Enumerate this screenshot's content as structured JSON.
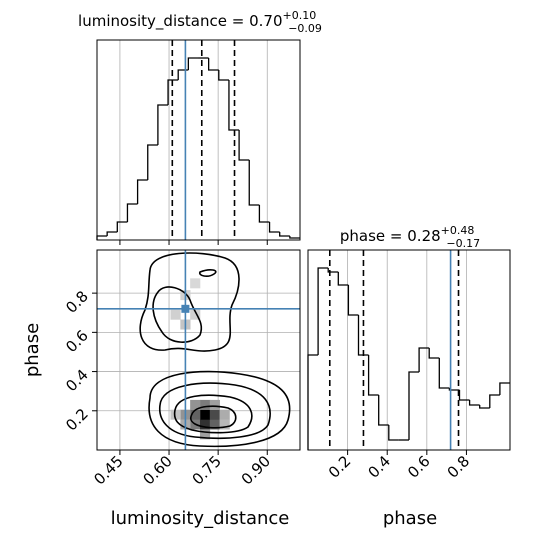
{
  "chart_data": [
    {
      "type": "histogram",
      "title": "luminosity_distance = 0.70",
      "title_upper": "+0.10",
      "title_lower": "−0.09",
      "bins": [
        0.38,
        0.411,
        0.442,
        0.473,
        0.504,
        0.535,
        0.566,
        0.597,
        0.628,
        0.659,
        0.69,
        0.721,
        0.752,
        0.783,
        0.814,
        0.845,
        0.876,
        0.907,
        0.938,
        0.969,
        1.0
      ],
      "values": [
        4,
        8,
        18,
        36,
        60,
        95,
        135,
        160,
        170,
        182,
        182,
        170,
        160,
        110,
        80,
        35,
        18,
        8,
        4,
        2
      ],
      "color": "#000000",
      "xlim": [
        0.38,
        1.0
      ],
      "ylim": [
        0,
        200
      ],
      "xticks": [
        0.45,
        {
          "value": 0.6,
          "label": "0.60"
        },
        0.75,
        {
          "value": 0.9,
          "label": "0.90"
        }
      ],
      "quantiles": [
        0.61,
        0.7,
        0.8
      ],
      "truth": 0.65,
      "truth_color": "#4682b4",
      "grid": true
    },
    {
      "type": "density2d",
      "xlabel": "luminosity_distance",
      "ylabel": "phase",
      "x": [
        0.68,
        0.71,
        0.74,
        0.71,
        0.68,
        0.74,
        0.65,
        0.77,
        0.71,
        0.68,
        0.74,
        0.65,
        0.71,
        0.62,
        0.77,
        0.65,
        0.68,
        0.65,
        0.62,
        0.68
      ],
      "y": [
        0.13,
        0.13,
        0.13,
        0.18,
        0.18,
        0.18,
        0.18,
        0.18,
        0.23,
        0.23,
        0.23,
        0.13,
        0.08,
        0.18,
        0.13,
        0.64,
        0.69,
        0.79,
        0.69,
        0.85
      ],
      "values": [
        0.5,
        0.8,
        0.6,
        1.0,
        0.6,
        0.7,
        0.4,
        0.3,
        0.5,
        0.4,
        0.35,
        0.3,
        0.35,
        0.2,
        0.25,
        0.2,
        0.15,
        0.15,
        0.15,
        0.12
      ],
      "xlim": [
        0.38,
        1.0
      ],
      "ylim": [
        0,
        1.02
      ],
      "xticks": [
        0.45,
        {
          "value": 0.6,
          "label": "0.60"
        },
        0.75,
        {
          "value": 0.9,
          "label": "0.90"
        }
      ],
      "yticks": [
        0.2,
        0.4,
        0.6,
        0.8
      ],
      "truth": [
        0.65,
        0.72
      ],
      "truth_color": "#4682b4",
      "grid": true
    },
    {
      "type": "histogram",
      "title": "phase = 0.28",
      "title_upper": "+0.48",
      "title_lower": "−0.17",
      "xlabel": "phase",
      "bins": [
        0,
        0.051,
        0.102,
        0.153,
        0.204,
        0.255,
        0.306,
        0.357,
        0.408,
        0.459,
        0.51,
        0.561,
        0.612,
        0.663,
        0.714,
        0.765,
        0.816,
        0.867,
        0.918,
        0.969,
        1.02
      ],
      "values": [
        95,
        182,
        178,
        165,
        135,
        95,
        55,
        25,
        10,
        10,
        78,
        102,
        92,
        62,
        60,
        50,
        45,
        42,
        55,
        67
      ],
      "color": "#000000",
      "xlim": [
        0,
        1.02
      ],
      "ylim": [
        0,
        200
      ],
      "xticks": [
        0.2,
        0.4,
        0.6,
        0.8
      ],
      "quantiles": [
        0.11,
        0.28,
        0.76
      ],
      "truth": 0.72,
      "truth_color": "#4682b4",
      "grid": true
    }
  ]
}
